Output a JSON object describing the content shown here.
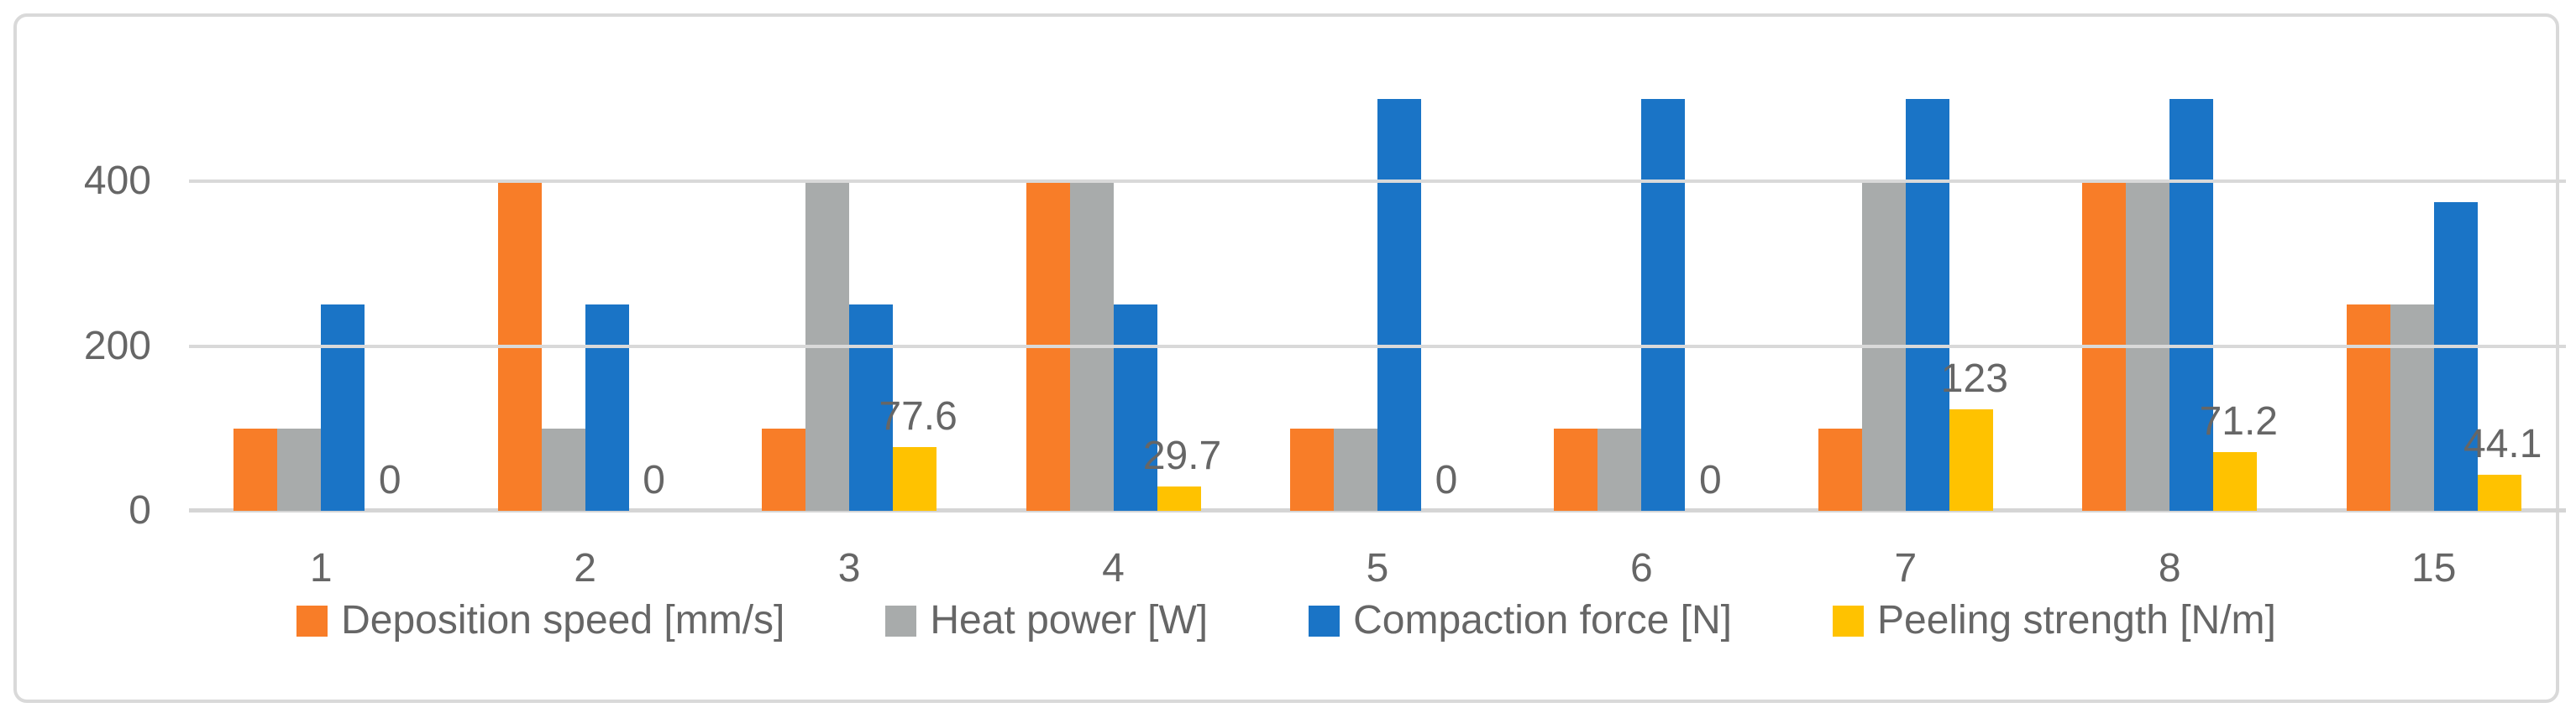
{
  "chart_data": {
    "type": "bar",
    "title": "",
    "xlabel": "",
    "ylabel": "",
    "categories": [
      "1",
      "2",
      "3",
      "4",
      "5",
      "6",
      "7",
      "8",
      "15"
    ],
    "series": [
      {
        "name": "Deposition speed [mm/s]",
        "color": "#F87D28",
        "values": [
          100,
          400,
          100,
          400,
          100,
          100,
          100,
          400,
          250
        ]
      },
      {
        "name": "Heat power [W]",
        "color": "#A8ABAB",
        "values": [
          100,
          100,
          400,
          400,
          100,
          100,
          400,
          400,
          250
        ]
      },
      {
        "name": "Compaction force [N]",
        "color": "#1A74C6",
        "values": [
          250,
          250,
          250,
          250,
          500,
          500,
          500,
          500,
          375
        ]
      },
      {
        "name": "Peeling strength [N/m]",
        "color": "#FFC200",
        "values": [
          0,
          0,
          77.6,
          29.7,
          0,
          0,
          123,
          71.2,
          44.1
        ],
        "data_labels": [
          "0",
          "0",
          "77.6",
          "29.7",
          "0",
          "0",
          "123",
          "71.2",
          "44.1"
        ]
      }
    ],
    "y_ticks": [
      {
        "value": 0,
        "label": "0"
      },
      {
        "value": 200,
        "label": "200"
      },
      {
        "value": 400,
        "label": "400"
      }
    ],
    "ylim": [
      0,
      500
    ],
    "grid": true,
    "legend_position": "bottom"
  },
  "colors": {
    "background": "#FFFFFF",
    "frame_border": "#D9D9D9",
    "gridline": "#D9D9D9",
    "axis_line": "#D5D5D5",
    "text": "#666666"
  }
}
